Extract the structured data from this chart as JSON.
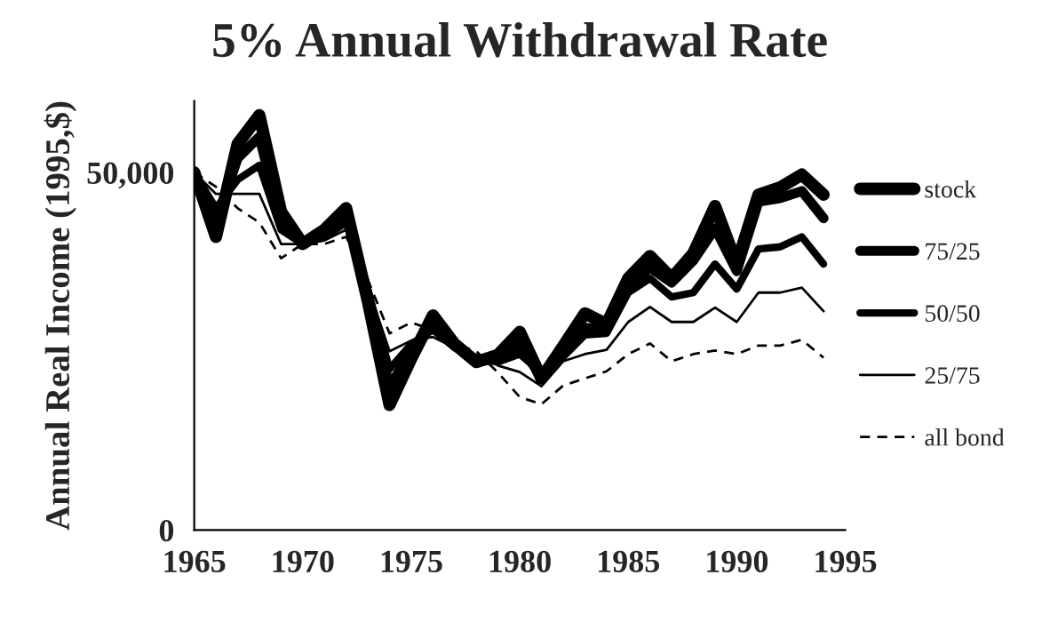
{
  "chart_data": {
    "type": "line",
    "title": "5% Annual Withdrawal Rate",
    "ylabel": "Annual Real Income (1995,$)",
    "x": [
      1965,
      1966,
      1967,
      1968,
      1969,
      1970,
      1971,
      1972,
      1973,
      1974,
      1975,
      1976,
      1977,
      1978,
      1979,
      1980,
      1981,
      1982,
      1983,
      1984,
      1985,
      1986,
      1987,
      1988,
      1989,
      1990,
      1991,
      1992,
      1993,
      1994
    ],
    "series": [
      {
        "name": "stock",
        "color": "#000000",
        "line_style": "solid",
        "values": [
          50000,
          41000,
          54000,
          58000,
          44500,
          40000,
          42000,
          45000,
          32000,
          17500,
          24000,
          30000,
          26000,
          23500,
          24500,
          27700,
          21200,
          25700,
          30300,
          28800,
          35200,
          38300,
          35200,
          38700,
          45300,
          37200,
          46900,
          47900,
          49700,
          46900
        ]
      },
      {
        "name": "75/25",
        "color": "#000000",
        "line_style": "solid",
        "values": [
          50000,
          43000,
          52000,
          55000,
          43000,
          40000,
          41500,
          44000,
          33000,
          20000,
          25000,
          29000,
          26000,
          23500,
          24000,
          25700,
          21500,
          25300,
          28300,
          28000,
          34200,
          36700,
          34600,
          37700,
          42200,
          36200,
          45900,
          46400,
          47400,
          43600
        ]
      },
      {
        "name": "50/50",
        "color": "#000000",
        "line_style": "solid",
        "values": [
          50000,
          45000,
          49000,
          51000,
          42000,
          40000,
          41000,
          43000,
          33500,
          22500,
          26000,
          28000,
          25500,
          24000,
          23500,
          24600,
          22000,
          24200,
          27300,
          27500,
          33200,
          35200,
          32600,
          33200,
          37200,
          33700,
          39300,
          39600,
          41000,
          37200
        ]
      },
      {
        "name": "25/75",
        "color": "#000000",
        "line_style": "solid",
        "values": [
          50000,
          47000,
          47000,
          47000,
          40000,
          40000,
          40500,
          42000,
          34000,
          25000,
          26500,
          27000,
          25500,
          24500,
          23000,
          22100,
          20100,
          23600,
          24600,
          25200,
          29100,
          31200,
          29100,
          29100,
          31100,
          29100,
          33200,
          33200,
          33900,
          30600
        ]
      },
      {
        "name": "all bond",
        "color": "#000000",
        "line_style": "dashed",
        "values": [
          50000,
          48000,
          45000,
          43000,
          38000,
          40000,
          40000,
          41000,
          35000,
          27500,
          29000,
          28000,
          26000,
          25000,
          22000,
          18600,
          17600,
          20200,
          21200,
          22200,
          24600,
          26100,
          23600,
          24600,
          25100,
          24600,
          25800,
          25800,
          26600,
          24100
        ]
      }
    ],
    "xlim": [
      1965,
      1995
    ],
    "xticks": [
      1965,
      1970,
      1975,
      1980,
      1985,
      1990,
      1995
    ],
    "ylim": [
      0,
      60000
    ],
    "yticks": [
      0,
      {
        "value": 50000,
        "label": "50,000"
      }
    ],
    "grid": false,
    "legend": "right"
  }
}
